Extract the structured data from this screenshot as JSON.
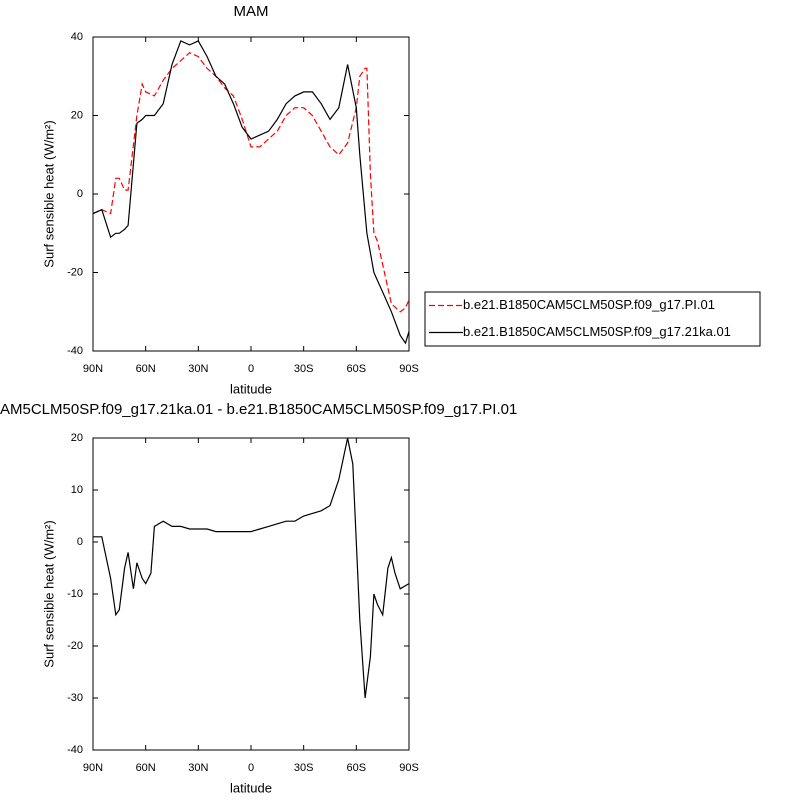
{
  "chart_data": [
    {
      "type": "line",
      "title": "MAM",
      "x_label": "latitude",
      "y_label": "Surf sensible heat (W/m²)",
      "x": [
        90,
        85,
        80,
        77,
        75,
        72,
        70,
        65,
        62,
        60,
        55,
        50,
        45,
        40,
        35,
        30,
        25,
        20,
        15,
        10,
        5,
        0,
        -5,
        -10,
        -15,
        -20,
        -25,
        -30,
        -35,
        -40,
        -45,
        -50,
        -55,
        -60,
        -62,
        -65,
        -66,
        -68,
        -70,
        -72,
        -75,
        -80,
        -85,
        -88,
        -90
      ],
      "series": [
        {
          "name": "b.e21.B1850CAM5CLM50SP.f09_g17.PI.01",
          "color": "#ff0000",
          "dash": true,
          "values": [
            -5,
            -4,
            -5,
            4,
            4,
            1,
            1,
            20,
            28,
            26,
            25,
            29,
            32,
            34,
            36,
            35,
            32,
            30,
            27,
            25,
            19,
            12,
            12,
            14,
            16,
            20,
            22,
            22,
            20,
            16,
            12,
            10,
            13,
            22,
            30,
            32,
            32,
            5,
            -10,
            -12,
            -18,
            -28,
            -30,
            -29,
            -27
          ]
        },
        {
          "name": "b.e21.B1850CAM5CLM50SP.f09_g17.21ka.01",
          "color": "#000000",
          "dash": false,
          "values": [
            -5,
            -4,
            -11,
            -10,
            -10,
            -9,
            -8,
            18,
            19,
            20,
            20,
            23,
            33,
            39,
            38,
            39,
            35,
            30,
            28,
            23,
            17,
            14,
            15,
            16,
            19,
            23,
            25,
            26,
            26,
            23,
            19,
            22,
            33,
            22,
            10,
            -5,
            -10,
            -15,
            -20,
            -22,
            -25,
            -30,
            -36,
            -38,
            -35
          ]
        }
      ],
      "xlim": [
        90,
        -90
      ],
      "xticks": [
        {
          "value": 90,
          "label": "90N"
        },
        {
          "value": 60,
          "label": "60N"
        },
        {
          "value": 30,
          "label": "30N"
        },
        0,
        {
          "value": -30,
          "label": "30S"
        },
        {
          "value": -60,
          "label": "60S"
        },
        {
          "value": -90,
          "label": "90S"
        }
      ],
      "ylim": [
        -40,
        40
      ],
      "yticks": [
        -40,
        -20,
        0,
        20,
        40
      ],
      "grid": false,
      "legend": "right"
    },
    {
      "type": "line",
      "title": "AM5CLM50SP.f09_g17.21ka.01 - b.e21.B1850CAM5CLM50SP.f09_g17.PI.01",
      "x_label": "latitude",
      "y_label": "Surf sensible heat (W/m²)",
      "x": [
        90,
        85,
        80,
        77,
        75,
        72,
        70,
        67,
        65,
        62,
        60,
        57,
        55,
        50,
        45,
        40,
        35,
        30,
        25,
        20,
        15,
        10,
        5,
        0,
        -5,
        -10,
        -15,
        -20,
        -25,
        -30,
        -35,
        -40,
        -45,
        -50,
        -55,
        -58,
        -60,
        -62,
        -65,
        -68,
        -70,
        -72,
        -75,
        -78,
        -80,
        -82,
        -85,
        -90
      ],
      "series": [
        {
          "color": "#000000",
          "dash": false,
          "values": [
            1,
            1,
            -7,
            -14,
            -13,
            -5,
            -2,
            -9,
            -4,
            -7,
            -8,
            -6,
            3,
            4,
            3,
            3,
            2.5,
            2.5,
            2.5,
            2,
            2,
            2,
            2,
            2,
            2.5,
            3,
            3.5,
            4,
            4,
            5,
            5.5,
            6,
            7,
            12,
            20,
            15,
            0,
            -15,
            -30,
            -22,
            -10,
            -12,
            -14,
            -5,
            -3,
            -6,
            -9,
            -8
          ]
        }
      ],
      "xlim": [
        90,
        -90
      ],
      "xticks": [
        {
          "value": 90,
          "label": "90N"
        },
        {
          "value": 60,
          "label": "60N"
        },
        {
          "value": 30,
          "label": "30N"
        },
        0,
        {
          "value": -30,
          "label": "30S"
        },
        {
          "value": -60,
          "label": "60S"
        },
        {
          "value": -90,
          "label": "90S"
        }
      ],
      "ylim": [
        -40,
        20
      ],
      "yticks": [
        -40,
        -30,
        -20,
        -10,
        0,
        10,
        20
      ],
      "grid": false
    }
  ]
}
